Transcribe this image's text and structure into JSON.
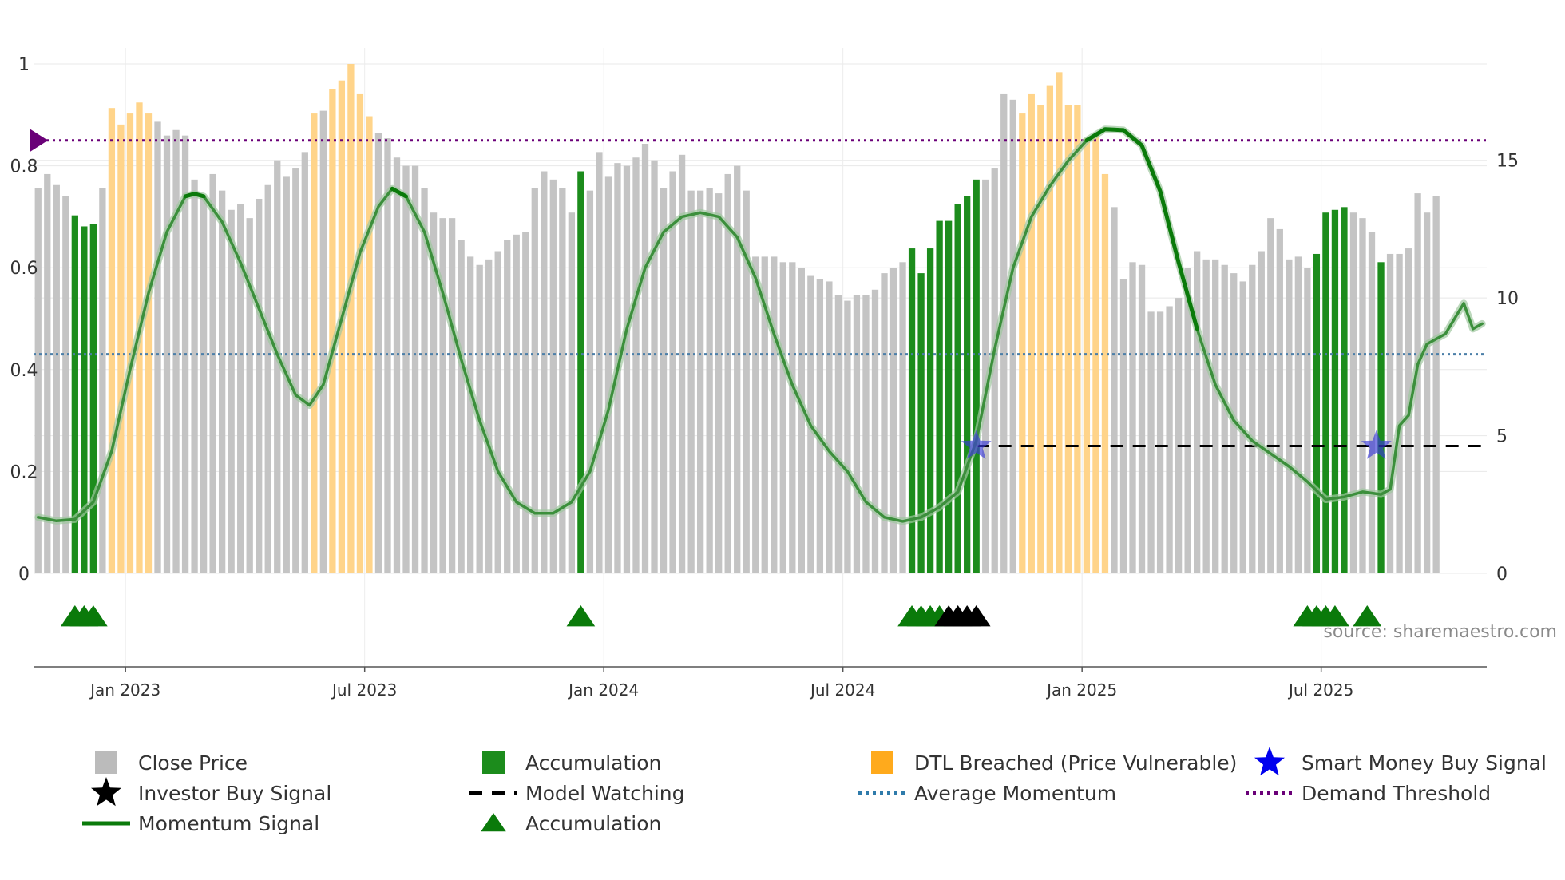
{
  "chart_data": {
    "type": "bar",
    "source_label": "source: sharemaestro.com",
    "left_axis": {
      "ticks": [
        "0",
        "0.2",
        "0.4",
        "0.6",
        "0.8",
        "1"
      ],
      "values": [
        0,
        0.2,
        0.4,
        0.6,
        0.8,
        1
      ],
      "range": [
        0,
        1
      ]
    },
    "right_axis": {
      "ticks": [
        "0",
        "5",
        "10",
        "15"
      ],
      "values": [
        0,
        5,
        10,
        15
      ],
      "range": [
        0,
        18.5
      ]
    },
    "x_axis": {
      "ticks": [
        "Jan 2023",
        "Jul 2023",
        "Jan 2024",
        "Jul 2024",
        "Jan 2025",
        "Jul 2025"
      ],
      "tick_weeks": [
        9.5,
        35.5,
        61.5,
        87.5,
        113.5,
        139.5
      ],
      "range_weeks": [
        0,
        157
      ]
    },
    "close_price": [
      14.0,
      14.5,
      14.1,
      13.7,
      13.0,
      12.6,
      12.7,
      14.0,
      16.9,
      16.3,
      16.7,
      17.1,
      16.7,
      16.4,
      15.9,
      16.1,
      15.9,
      14.3,
      13.7,
      14.5,
      13.9,
      13.2,
      13.4,
      12.9,
      13.6,
      14.1,
      15.0,
      14.4,
      14.7,
      15.3,
      16.7,
      16.8,
      17.6,
      17.9,
      18.5,
      17.4,
      16.6,
      16.0,
      15.8,
      15.1,
      14.8,
      14.8,
      14.0,
      13.1,
      12.9,
      12.9,
      12.1,
      11.5,
      11.2,
      11.4,
      11.7,
      12.1,
      12.3,
      12.4,
      14.0,
      14.6,
      14.3,
      14.0,
      13.1,
      14.6,
      13.9,
      15.3,
      14.4,
      14.9,
      14.8,
      15.1,
      15.6,
      15.0,
      14.0,
      14.6,
      15.2,
      13.9,
      13.9,
      14.0,
      13.8,
      14.5,
      14.8,
      13.9,
      11.5,
      11.5,
      11.5,
      11.3,
      11.3,
      11.1,
      10.8,
      10.7,
      10.6,
      10.1,
      9.9,
      10.1,
      10.1,
      10.3,
      10.9,
      11.1,
      11.3,
      11.8,
      10.9,
      11.8,
      12.8,
      12.8,
      13.4,
      13.7,
      14.3,
      14.3,
      14.7,
      17.4,
      17.2,
      16.7,
      17.4,
      17.0,
      17.7,
      18.2,
      17.0,
      17.0,
      15.8,
      15.9,
      14.5,
      13.3,
      10.7,
      11.3,
      11.2,
      9.5,
      9.5,
      9.7,
      10.0,
      11.1,
      11.7,
      11.4,
      11.4,
      11.2,
      10.9,
      10.6,
      11.2,
      11.7,
      12.9,
      12.5,
      11.4,
      11.5,
      11.1,
      11.6,
      13.1,
      13.2,
      13.3,
      13.1,
      12.9,
      12.4,
      11.3,
      11.6,
      11.6,
      11.8,
      13.8,
      13.1,
      13.7
    ],
    "accumulation_weeks": [
      4,
      5,
      6,
      59,
      95,
      96,
      97,
      98,
      99,
      100,
      101,
      102,
      139,
      140,
      141,
      142,
      146
    ],
    "dtl_breached_weeks": [
      8,
      9,
      10,
      11,
      12,
      30,
      32,
      33,
      34,
      35,
      36,
      107,
      108,
      109,
      110,
      111,
      112,
      113,
      114,
      115,
      116
    ],
    "momentum_signal": [
      [
        0,
        0.11
      ],
      [
        2,
        0.103
      ],
      [
        4,
        0.106
      ],
      [
        6,
        0.14
      ],
      [
        8,
        0.24
      ],
      [
        10,
        0.4
      ],
      [
        12,
        0.55
      ],
      [
        14,
        0.67
      ],
      [
        16,
        0.74
      ],
      [
        17,
        0.745
      ],
      [
        18,
        0.74
      ],
      [
        20,
        0.69
      ],
      [
        22,
        0.61
      ],
      [
        24,
        0.52
      ],
      [
        26,
        0.43
      ],
      [
        28,
        0.35
      ],
      [
        29.5,
        0.33
      ],
      [
        31,
        0.37
      ],
      [
        33,
        0.5
      ],
      [
        35,
        0.63
      ],
      [
        37,
        0.72
      ],
      [
        38.5,
        0.755
      ],
      [
        40,
        0.74
      ],
      [
        42,
        0.67
      ],
      [
        44,
        0.55
      ],
      [
        46,
        0.42
      ],
      [
        48,
        0.3
      ],
      [
        50,
        0.2
      ],
      [
        52,
        0.14
      ],
      [
        54,
        0.118
      ],
      [
        56,
        0.118
      ],
      [
        58,
        0.14
      ],
      [
        60,
        0.2
      ],
      [
        62,
        0.32
      ],
      [
        64,
        0.48
      ],
      [
        66,
        0.6
      ],
      [
        68,
        0.67
      ],
      [
        70,
        0.7
      ],
      [
        72,
        0.708
      ],
      [
        74,
        0.7
      ],
      [
        76,
        0.66
      ],
      [
        78,
        0.58
      ],
      [
        80,
        0.47
      ],
      [
        82,
        0.37
      ],
      [
        84,
        0.29
      ],
      [
        86,
        0.24
      ],
      [
        88,
        0.2
      ],
      [
        90,
        0.14
      ],
      [
        92,
        0.11
      ],
      [
        94,
        0.102
      ],
      [
        96,
        0.11
      ],
      [
        98,
        0.13
      ],
      [
        100,
        0.16
      ],
      [
        102,
        0.26
      ],
      [
        104,
        0.44
      ],
      [
        106,
        0.6
      ],
      [
        108,
        0.7
      ],
      [
        110,
        0.76
      ],
      [
        112,
        0.81
      ],
      [
        114,
        0.85
      ],
      [
        116,
        0.872
      ],
      [
        118,
        0.87
      ],
      [
        120,
        0.84
      ],
      [
        122,
        0.75
      ],
      [
        124,
        0.61
      ],
      [
        126,
        0.48
      ],
      [
        128,
        0.37
      ],
      [
        130,
        0.3
      ],
      [
        132,
        0.26
      ],
      [
        134,
        0.235
      ],
      [
        136,
        0.21
      ],
      [
        138,
        0.18
      ],
      [
        140,
        0.145
      ],
      [
        142,
        0.15
      ],
      [
        144,
        0.16
      ],
      [
        146,
        0.155
      ],
      [
        147,
        0.165
      ],
      [
        148,
        0.29
      ],
      [
        149,
        0.31
      ],
      [
        150,
        0.41
      ],
      [
        151,
        0.45
      ],
      [
        152,
        0.46
      ],
      [
        153,
        0.47
      ],
      [
        155,
        0.53
      ],
      [
        156,
        0.48
      ],
      [
        157,
        0.49
      ]
    ],
    "momentum_bold_ranges": [
      [
        16,
        18
      ],
      [
        38,
        41
      ],
      [
        114,
        127
      ]
    ],
    "average_momentum": 0.43,
    "demand_threshold": 0.85,
    "model_watching": {
      "value": 0.25,
      "from_week": 102,
      "to_week": 157
    },
    "smart_money_buy_signal": [
      [
        102,
        0.25
      ],
      [
        145.5,
        0.25
      ]
    ],
    "investor_buy_signal_weeks": [
      99,
      100,
      101,
      102
    ],
    "accumulation_marker_weeks": [
      4,
      5,
      6,
      59,
      95,
      96,
      97,
      98,
      138,
      139,
      140,
      141,
      144.5
    ],
    "legend": [
      {
        "label": "Close Price",
        "symbol": "square",
        "color": "#bbbbbb"
      },
      {
        "label": "Accumulation",
        "symbol": "square",
        "color": "#1c8c1c"
      },
      {
        "label": "DTL Breached (Price Vulnerable)",
        "symbol": "square",
        "color": "#ffaa1c"
      },
      {
        "label": "Smart Money Buy Signal",
        "symbol": "star",
        "color": "#0000ee"
      },
      {
        "label": "Investor Buy Signal",
        "symbol": "star",
        "color": "#000000"
      },
      {
        "label": "Model Watching",
        "symbol": "dash",
        "color": "#000000"
      },
      {
        "label": "Average Momentum",
        "symbol": "dot",
        "color": "#2f7bab"
      },
      {
        "label": "Demand Threshold",
        "symbol": "dot",
        "color": "#6a0078"
      },
      {
        "label": "Momentum Signal",
        "symbol": "line",
        "color": "#0a7a0a"
      },
      {
        "label": "Accumulation",
        "symbol": "triangle",
        "color": "#0a7a0a"
      }
    ]
  },
  "colors": {
    "close_price": "#c4c4c4",
    "accumulation": "#1c8c1c",
    "dtl": "#ffd48a",
    "momentum": "#0a7a0a",
    "average": "#4a7ea8",
    "threshold": "#6a0078",
    "smart_money": "#3a3ad8",
    "investor": "#000000",
    "grid": "#e8e8e8",
    "source": "#8a8a8a"
  }
}
